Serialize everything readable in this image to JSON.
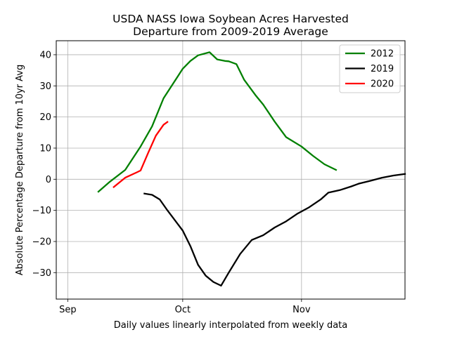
{
  "chart_data": {
    "type": "line",
    "title": "USDA NASS Iowa Soybean Acres Harvested",
    "subtitle": "Departure from 2009-2019 Average",
    "xlabel": "Daily values linearly interpolated from weekly data",
    "ylabel": "Absolute Percentage Departure from 10yr Avg",
    "x_axis": "date",
    "xlim": [
      "2020-08-29",
      "2020-11-28"
    ],
    "ylim": [
      -38.5,
      44.5
    ],
    "xticks": [
      {
        "value": "2020-09-01",
        "label": "Sep"
      },
      {
        "value": "2020-10-01",
        "label": "Oct"
      },
      {
        "value": "2020-11-01",
        "label": "Nov"
      }
    ],
    "yticks": [
      -30,
      -20,
      -10,
      0,
      10,
      20,
      30,
      40
    ],
    "grid": true,
    "legend_position": "top-right",
    "series": [
      {
        "name": "2012",
        "color": "#008000",
        "points": [
          [
            "2020-09-09",
            -4.0
          ],
          [
            "2020-09-12",
            -0.8
          ],
          [
            "2020-09-16",
            3.0
          ],
          [
            "2020-09-20",
            10.5
          ],
          [
            "2020-09-23",
            17.0
          ],
          [
            "2020-09-26",
            26.0
          ],
          [
            "2020-10-01",
            35.5
          ],
          [
            "2020-10-03",
            38.0
          ],
          [
            "2020-10-05",
            39.8
          ],
          [
            "2020-10-08",
            40.8
          ],
          [
            "2020-10-10",
            38.5
          ],
          [
            "2020-10-12",
            38.0
          ],
          [
            "2020-10-13",
            37.9
          ],
          [
            "2020-10-15",
            37.0
          ],
          [
            "2020-10-17",
            32.0
          ],
          [
            "2020-10-20",
            27.0
          ],
          [
            "2020-10-22",
            24.0
          ],
          [
            "2020-10-25",
            18.5
          ],
          [
            "2020-10-28",
            13.5
          ],
          [
            "2020-11-01",
            10.5
          ],
          [
            "2020-11-04",
            7.5
          ],
          [
            "2020-11-07",
            4.8
          ],
          [
            "2020-11-10",
            3.0
          ]
        ]
      },
      {
        "name": "2019",
        "color": "#000000",
        "points": [
          [
            "2020-09-21",
            -4.6
          ],
          [
            "2020-09-23",
            -5.0
          ],
          [
            "2020-09-25",
            -6.5
          ],
          [
            "2020-09-27",
            -10.0
          ],
          [
            "2020-10-01",
            -16.5
          ],
          [
            "2020-10-03",
            -21.5
          ],
          [
            "2020-10-05",
            -27.5
          ],
          [
            "2020-10-07",
            -31.0
          ],
          [
            "2020-10-09",
            -33.0
          ],
          [
            "2020-10-11",
            -34.2
          ],
          [
            "2020-10-13",
            -30.0
          ],
          [
            "2020-10-16",
            -24.0
          ],
          [
            "2020-10-19",
            -19.5
          ],
          [
            "2020-10-22",
            -18.0
          ],
          [
            "2020-10-25",
            -15.5
          ],
          [
            "2020-10-28",
            -13.5
          ],
          [
            "2020-10-31",
            -11.0
          ],
          [
            "2020-11-03",
            -9.0
          ],
          [
            "2020-11-06",
            -6.5
          ],
          [
            "2020-11-08",
            -4.3
          ],
          [
            "2020-11-11",
            -3.5
          ],
          [
            "2020-11-14",
            -2.3
          ],
          [
            "2020-11-16",
            -1.4
          ],
          [
            "2020-11-19",
            -0.5
          ],
          [
            "2020-11-22",
            0.5
          ],
          [
            "2020-11-25",
            1.2
          ],
          [
            "2020-11-28",
            1.7
          ]
        ]
      },
      {
        "name": "2020",
        "color": "#ff0000",
        "points": [
          [
            "2020-09-13",
            -2.5
          ],
          [
            "2020-09-16",
            0.5
          ],
          [
            "2020-09-19",
            2.2
          ],
          [
            "2020-09-20",
            2.8
          ],
          [
            "2020-09-22",
            8.5
          ],
          [
            "2020-09-24",
            14.0
          ],
          [
            "2020-09-26",
            17.5
          ],
          [
            "2020-09-27",
            18.4
          ]
        ]
      }
    ]
  }
}
